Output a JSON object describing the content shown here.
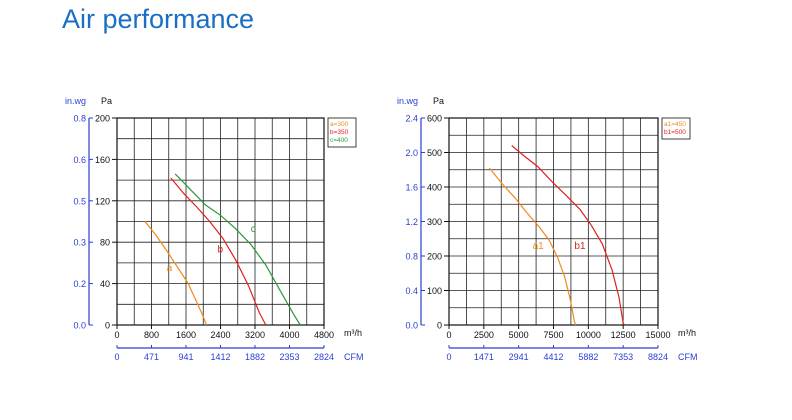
{
  "page": {
    "title": "Air performance"
  },
  "chart_data": [
    {
      "type": "line",
      "title": "",
      "xlabel": "m³/h",
      "xlabel2": "CFM",
      "ylabel": "Pa",
      "ylabel2": "in.wg",
      "xlim": [
        0,
        4800
      ],
      "ylim": [
        0,
        200
      ],
      "x_ticks": [
        0,
        800,
        1600,
        2400,
        3200,
        4000,
        4800
      ],
      "y_ticks": [
        0,
        40,
        80,
        120,
        160,
        200
      ],
      "x2_ticks": [
        "0",
        "471",
        "941",
        "1412",
        "1882",
        "2353",
        "2824"
      ],
      "y2_ticks": [
        "0.0",
        "0.2",
        "0.3",
        "0.5",
        "0.6",
        "0.8"
      ],
      "grid": true,
      "legend": [
        "a=300",
        "b=350",
        "c=400"
      ],
      "series": [
        {
          "name": "a",
          "color": "#f08a1e",
          "label_at": [
            1150,
            52
          ],
          "points": [
            [
              650,
              100
            ],
            [
              900,
              87
            ],
            [
              1150,
              72
            ],
            [
              1400,
              56
            ],
            [
              1650,
              40
            ],
            [
              1850,
              22
            ],
            [
              2000,
              8
            ],
            [
              2070,
              0
            ]
          ]
        },
        {
          "name": "b",
          "color": "#e0211c",
          "label_at": [
            2330,
            70
          ],
          "points": [
            [
              1250,
              142
            ],
            [
              1550,
              127
            ],
            [
              1850,
              114
            ],
            [
              2150,
              100
            ],
            [
              2450,
              84
            ],
            [
              2750,
              63
            ],
            [
              3050,
              38
            ],
            [
              3300,
              12
            ],
            [
              3450,
              0
            ]
          ]
        },
        {
          "name": "c",
          "color": "#2a9a35",
          "label_at": [
            3100,
            90
          ],
          "points": [
            [
              1350,
              146
            ],
            [
              1700,
              131
            ],
            [
              2050,
              116
            ],
            [
              2400,
              106
            ],
            [
              2750,
              93
            ],
            [
              3100,
              78
            ],
            [
              3450,
              58
            ],
            [
              3800,
              32
            ],
            [
              4100,
              10
            ],
            [
              4250,
              0
            ]
          ]
        }
      ]
    },
    {
      "type": "line",
      "title": "",
      "xlabel": "m³/h",
      "xlabel2": "CFM",
      "ylabel": "Pa",
      "ylabel2": "in.wg",
      "xlim": [
        0,
        15000
      ],
      "ylim": [
        0,
        600
      ],
      "x_ticks": [
        0,
        2500,
        5000,
        7500,
        10000,
        12500,
        15000
      ],
      "y_ticks": [
        0,
        100,
        200,
        300,
        400,
        500,
        600
      ],
      "x2_ticks": [
        "0",
        "1471",
        "2941",
        "4412",
        "5882",
        "7353",
        "8824"
      ],
      "y2_ticks": [
        "0.0",
        "0.4",
        "0.8",
        "1.2",
        "1.6",
        "2.0",
        "2.4"
      ],
      "grid": true,
      "legend": [
        "a1=450",
        "b1=500"
      ],
      "series": [
        {
          "name": "a1",
          "color": "#f08a1e",
          "label_at": [
            6000,
            220
          ],
          "points": [
            [
              2900,
              455
            ],
            [
              3800,
              410
            ],
            [
              4700,
              370
            ],
            [
              5600,
              325
            ],
            [
              6500,
              283
            ],
            [
              7200,
              245
            ],
            [
              7800,
              195
            ],
            [
              8300,
              140
            ],
            [
              8700,
              75
            ],
            [
              9000,
              10
            ],
            [
              9100,
              0
            ]
          ]
        },
        {
          "name": "b1",
          "color": "#e0211c",
          "label_at": [
            9000,
            220
          ],
          "points": [
            [
              4500,
              520
            ],
            [
              5400,
              490
            ],
            [
              6400,
              458
            ],
            [
              7400,
              415
            ],
            [
              8400,
              376
            ],
            [
              9400,
              335
            ],
            [
              10200,
              290
            ],
            [
              11000,
              235
            ],
            [
              11700,
              160
            ],
            [
              12200,
              80
            ],
            [
              12500,
              5
            ],
            [
              12600,
              0
            ]
          ]
        }
      ]
    }
  ]
}
